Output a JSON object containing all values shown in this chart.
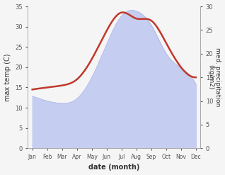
{
  "months": [
    "Jan",
    "Feb",
    "Mar",
    "Apr",
    "May",
    "Jun",
    "Jul",
    "Aug",
    "Sep",
    "Oct",
    "Nov",
    "Dec"
  ],
  "temp": [
    14.5,
    15.0,
    15.5,
    17.0,
    22.0,
    29.0,
    33.5,
    32.0,
    31.5,
    26.0,
    20.0,
    17.5
  ],
  "precip": [
    11.0,
    10.0,
    9.5,
    10.5,
    15.0,
    22.0,
    28.0,
    29.0,
    26.0,
    20.0,
    17.0,
    13.5
  ],
  "temp_color": "#c0392b",
  "precip_fill_color": "#c5cdf0",
  "precip_border_color": "#aab4e8",
  "left_ylim": [
    0,
    35
  ],
  "right_ylim": [
    0,
    30
  ],
  "left_yticks": [
    0,
    5,
    10,
    15,
    20,
    25,
    30,
    35
  ],
  "right_yticks": [
    0,
    5,
    10,
    15,
    20,
    25,
    30
  ],
  "xlabel": "date (month)",
  "ylabel_left": "max temp (C)",
  "ylabel_right": "med. precipitation\n(kg/m2)",
  "bg_color": "#f5f5f5",
  "spine_color": "#aaaaaa",
  "tick_color": "#555555",
  "label_color": "#333333"
}
